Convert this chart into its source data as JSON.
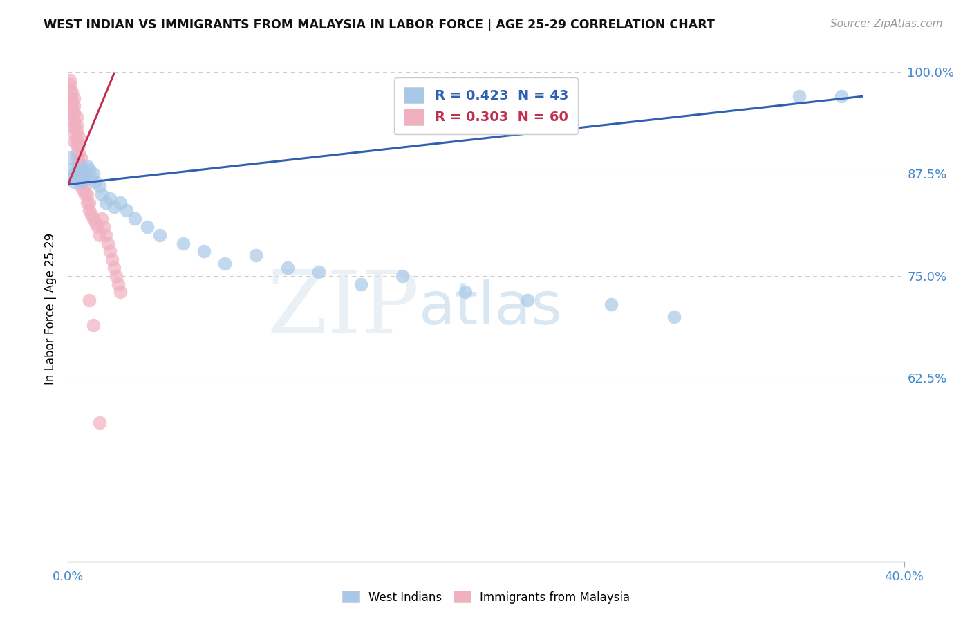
{
  "title": "WEST INDIAN VS IMMIGRANTS FROM MALAYSIA IN LABOR FORCE | AGE 25-29 CORRELATION CHART",
  "source": "Source: ZipAtlas.com",
  "ylabel": "In Labor Force | Age 25-29",
  "xlim": [
    0.0,
    0.4
  ],
  "ylim": [
    0.4,
    1.02
  ],
  "ytick_positions": [
    0.625,
    0.75,
    0.875,
    1.0
  ],
  "ytick_labels": [
    "62.5%",
    "75.0%",
    "87.5%",
    "100.0%"
  ],
  "legend_blue_label": "R = 0.423  N = 43",
  "legend_pink_label": "R = 0.303  N = 60",
  "watermark_zip": "ZIP",
  "watermark_atlas": "atlas",
  "blue_scatter_color": "#a8c8e8",
  "pink_scatter_color": "#f0b0c0",
  "blue_line_color": "#3060b0",
  "pink_line_color": "#c03050",
  "blue_legend_color": "#a8c8e8",
  "pink_legend_color": "#f0b0c0",
  "background_color": "#ffffff",
  "grid_color": "#cccccc",
  "axis_label_color": "#4488cc",
  "title_color": "#111111",
  "blue_text_color": "#3060b0",
  "pink_text_color": "#c03050",
  "blue_x": [
    0.001,
    0.002,
    0.002,
    0.003,
    0.003,
    0.004,
    0.004,
    0.005,
    0.005,
    0.006,
    0.006,
    0.007,
    0.007,
    0.008,
    0.009,
    0.01,
    0.011,
    0.012,
    0.013,
    0.015,
    0.016,
    0.018,
    0.02,
    0.022,
    0.025,
    0.028,
    0.032,
    0.038,
    0.044,
    0.055,
    0.065,
    0.075,
    0.09,
    0.105,
    0.12,
    0.14,
    0.16,
    0.19,
    0.22,
    0.26,
    0.29,
    0.35,
    0.37
  ],
  "blue_y": [
    0.895,
    0.88,
    0.87,
    0.875,
    0.865,
    0.88,
    0.87,
    0.88,
    0.87,
    0.875,
    0.865,
    0.88,
    0.87,
    0.875,
    0.885,
    0.88,
    0.87,
    0.875,
    0.865,
    0.86,
    0.85,
    0.84,
    0.845,
    0.835,
    0.84,
    0.83,
    0.82,
    0.81,
    0.8,
    0.79,
    0.78,
    0.765,
    0.775,
    0.76,
    0.755,
    0.74,
    0.75,
    0.73,
    0.72,
    0.715,
    0.7,
    0.97,
    0.97
  ],
  "pink_x": [
    0.001,
    0.001,
    0.001,
    0.001,
    0.002,
    0.002,
    0.002,
    0.002,
    0.002,
    0.003,
    0.003,
    0.003,
    0.003,
    0.003,
    0.003,
    0.003,
    0.004,
    0.004,
    0.004,
    0.004,
    0.004,
    0.004,
    0.004,
    0.005,
    0.005,
    0.005,
    0.005,
    0.005,
    0.006,
    0.006,
    0.006,
    0.006,
    0.006,
    0.007,
    0.007,
    0.007,
    0.008,
    0.008,
    0.009,
    0.009,
    0.01,
    0.01,
    0.011,
    0.012,
    0.013,
    0.014,
    0.015,
    0.016,
    0.017,
    0.018,
    0.019,
    0.02,
    0.021,
    0.022,
    0.023,
    0.024,
    0.025,
    0.01,
    0.012,
    0.015
  ],
  "pink_y": [
    0.99,
    0.985,
    0.978,
    0.968,
    0.975,
    0.965,
    0.958,
    0.948,
    0.94,
    0.968,
    0.958,
    0.95,
    0.94,
    0.932,
    0.925,
    0.915,
    0.945,
    0.935,
    0.928,
    0.918,
    0.91,
    0.9,
    0.892,
    0.92,
    0.91,
    0.9,
    0.89,
    0.88,
    0.895,
    0.885,
    0.875,
    0.865,
    0.86,
    0.875,
    0.865,
    0.855,
    0.86,
    0.85,
    0.85,
    0.84,
    0.84,
    0.83,
    0.825,
    0.82,
    0.815,
    0.81,
    0.8,
    0.82,
    0.81,
    0.8,
    0.79,
    0.78,
    0.77,
    0.76,
    0.75,
    0.74,
    0.73,
    0.72,
    0.69,
    0.57
  ],
  "blue_line_x0": 0.0,
  "blue_line_y0": 0.862,
  "blue_line_x1": 0.38,
  "blue_line_y1": 0.97,
  "pink_line_x0": 0.0,
  "pink_line_y0": 0.862,
  "pink_line_x1": 0.022,
  "pink_line_y1": 0.998
}
